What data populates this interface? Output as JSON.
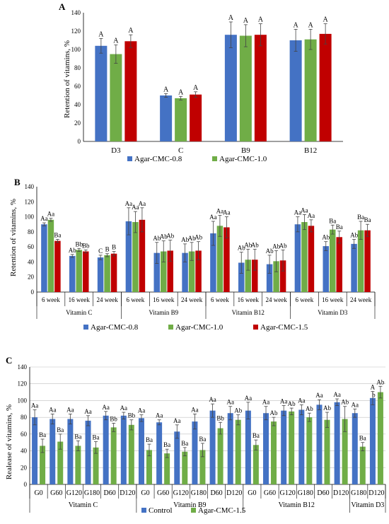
{
  "colors": {
    "blue": "#4472C4",
    "green": "#70AD47",
    "red": "#C00000",
    "pink": "#FF66CC",
    "grid": "#bfbfbf"
  },
  "chart_data": [
    {
      "panel": "A",
      "type": "bar",
      "ylabel": "Retention of vitamins, %",
      "ylim": [
        0,
        140
      ],
      "ytick_step": 20,
      "grid": false,
      "legend_position": "bottom",
      "categories": [
        "D3",
        "C",
        "B9",
        "B12"
      ],
      "series": [
        {
          "name": "Agar-CMC-0.8",
          "values": [
            104,
            50,
            116,
            110
          ],
          "errors": [
            8,
            2,
            14,
            12
          ],
          "labels": [
            "A",
            "A",
            "A",
            "A"
          ]
        },
        {
          "name": "Agar-CMC-1.0",
          "values": [
            95,
            47,
            115,
            111
          ],
          "errors": [
            10,
            2,
            12,
            11
          ],
          "labels": [
            "A",
            "A",
            "A",
            "A"
          ]
        },
        {
          "name": "",
          "values": [
            109,
            51,
            116,
            117
          ],
          "errors": [
            7,
            3,
            12,
            11
          ],
          "labels": [
            "A",
            "A",
            "A",
            "A"
          ]
        }
      ]
    },
    {
      "panel": "B",
      "type": "bar",
      "ylabel": "Retention of vitamins, %",
      "ylim": [
        0,
        140
      ],
      "ytick_step": 20,
      "grid": false,
      "legend_position": "bottom",
      "categories": [
        "6 week",
        "16 week",
        "24 week",
        "6 week",
        "16 week",
        "24 week",
        "6 week",
        "16 week",
        "24 week",
        "6 week",
        "16 week",
        "24 week"
      ],
      "groups": [
        "Vitamin C",
        "Vitamin B9",
        "Vitamin B12",
        "Vitamin D3"
      ],
      "series": [
        {
          "name": "Agar-CMC-0.8",
          "values": [
            90,
            48,
            46,
            94,
            52,
            52,
            78,
            39,
            37,
            90,
            61,
            64
          ],
          "errors": [
            2,
            2,
            3,
            18,
            14,
            12,
            16,
            14,
            12,
            10,
            6,
            6
          ],
          "labels": [
            "Aa",
            "Ab",
            "C",
            "Aa",
            "Ab",
            "Ab",
            "Aa",
            "Ab",
            "Ab",
            "Aa",
            "Ab",
            "Ab"
          ]
        },
        {
          "name": "Agar-CMC-1.0",
          "values": [
            96,
            56,
            49,
            93,
            54,
            54,
            88,
            43,
            41,
            93,
            83,
            82
          ],
          "errors": [
            2,
            2,
            2,
            14,
            14,
            12,
            14,
            14,
            14,
            10,
            6,
            12
          ],
          "labels": [
            "Aa",
            "Bb",
            "B",
            "Aa",
            "Ab",
            "Ab",
            "Aa",
            "Ab",
            "Ab",
            "Aa",
            "Ba",
            "Ba"
          ]
        },
        {
          "name": "Agar-CMC-1.5",
          "values": [
            68,
            54,
            51,
            96,
            55,
            55,
            86,
            43,
            42,
            88,
            73,
            82
          ],
          "errors": [
            2,
            2,
            3,
            16,
            14,
            12,
            14,
            14,
            14,
            8,
            8,
            8
          ],
          "labels": [
            "Ba",
            "Bb",
            "B",
            "Aa",
            "Ab",
            "Ab",
            "Aa",
            "Ab",
            "Ab",
            "Aa",
            "Ba",
            "Ba"
          ]
        }
      ]
    },
    {
      "panel": "C",
      "type": "bar",
      "ylabel": "Realease of vitamins, %",
      "ylim": [
        0,
        140
      ],
      "ytick_step": 20,
      "grid": true,
      "legend_position": "bottom",
      "categories": [
        "G0",
        "G60",
        "G120",
        "G180",
        "D60",
        "D120",
        "G0",
        "G60",
        "G120",
        "G180",
        "D60",
        "D120",
        "G0",
        "G60",
        "G120",
        "G180",
        "D60",
        "D120",
        "G180",
        "D120"
      ],
      "groups": [
        "Vitamin C",
        "Vitamin B9",
        "Vitamin B12",
        "Vitamin D3"
      ],
      "series": [
        {
          "name": "Control",
          "values": [
            80,
            78,
            78,
            76,
            82,
            82,
            79,
            74,
            63,
            75,
            88,
            85,
            88,
            85,
            88,
            89,
            95,
            98,
            85,
            103
          ],
          "errors": [
            9,
            6,
            6,
            6,
            5,
            4,
            4,
            3,
            8,
            9,
            8,
            8,
            10,
            8,
            6,
            6,
            6,
            4,
            5,
            8
          ],
          "labels": [
            "Aa",
            "Aa",
            "Aa",
            "Aa",
            "Aa",
            "Aa",
            "Aa",
            "Aa",
            "Aa",
            "Aa",
            "Aa",
            "Aa",
            "Aa",
            "Aa",
            "Aa",
            "Aa",
            "Aa",
            "Aa",
            "Aa",
            "A"
          ]
        },
        {
          "name": "Agar-CMC-1.5",
          "values": [
            46,
            51,
            46,
            44,
            68,
            71,
            41,
            37,
            39,
            41,
            67,
            77,
            47,
            75,
            87,
            80,
            77,
            78,
            45,
            110
          ],
          "errors": [
            8,
            9,
            6,
            7,
            5,
            6,
            7,
            5,
            5,
            8,
            7,
            6,
            6,
            5,
            4,
            5,
            9,
            15,
            5,
            7
          ],
          "labels": [
            "Ba",
            "Ba",
            "Ba",
            "Ba",
            "Bb",
            "Bb",
            "Ba",
            "Ba",
            "Ba",
            "Ba",
            "Bb",
            "Ab",
            "Ba",
            "Ab",
            "Ab",
            "Ab",
            "Ab",
            "Ab",
            "Ba",
            "Ab"
          ]
        }
      ],
      "extra_labels": [
        "b"
      ]
    }
  ],
  "panels": {
    "A": {
      "letter": "A"
    },
    "B": {
      "letter": "B"
    },
    "C": {
      "letter": "C"
    }
  }
}
